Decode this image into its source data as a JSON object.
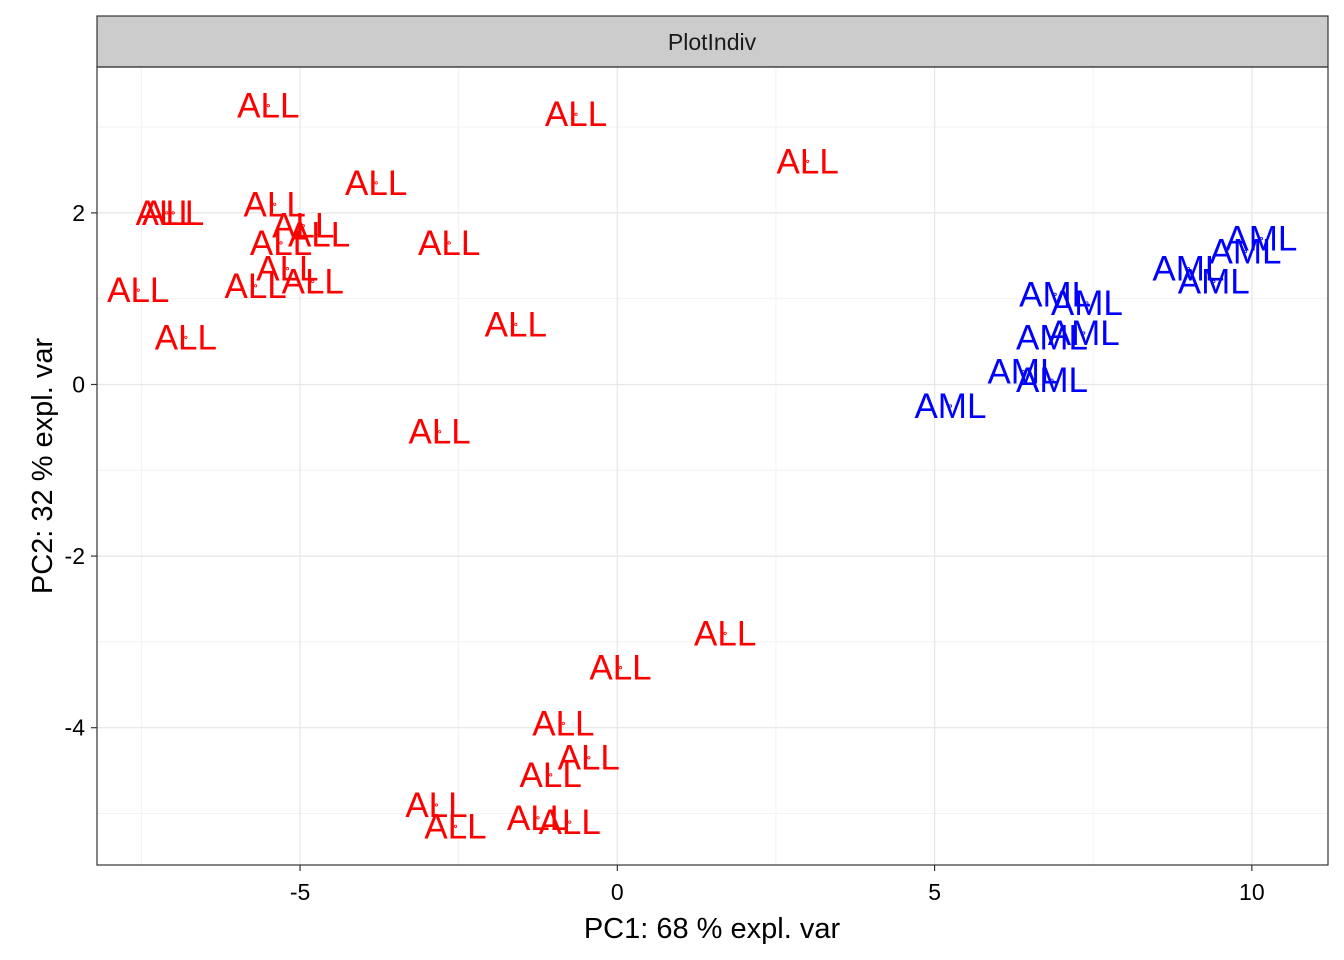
{
  "chart_data": {
    "type": "scatter",
    "title": "",
    "panel_title": "PlotIndiv",
    "xlabel": "PC1: 68 % expl. var",
    "ylabel": "PC2: 32 % expl. var",
    "xlim": [
      -8.2,
      11.2
    ],
    "ylim": [
      -5.6,
      3.7
    ],
    "x_ticks": [
      -5,
      0,
      5,
      10
    ],
    "x_tick_labels": [
      "-5",
      "0",
      "5",
      "10"
    ],
    "y_ticks": [
      -4,
      -2,
      0,
      2
    ],
    "y_tick_labels": [
      "-4",
      "-2",
      "0",
      "2"
    ],
    "grid": true,
    "legend": "none",
    "series": [
      {
        "name": "ALL",
        "color": "#ff0000",
        "points": [
          {
            "x": -5.5,
            "y": 3.25,
            "label": "ALL"
          },
          {
            "x": -0.65,
            "y": 3.15,
            "label": "ALL"
          },
          {
            "x": 3.0,
            "y": 2.6,
            "label": "ALL"
          },
          {
            "x": -7.1,
            "y": 2.0,
            "label": "ALL"
          },
          {
            "x": -7.0,
            "y": 2.0,
            "label": "ALL"
          },
          {
            "x": -5.4,
            "y": 2.1,
            "label": "ALL"
          },
          {
            "x": -3.8,
            "y": 2.35,
            "label": "ALL"
          },
          {
            "x": -4.95,
            "y": 1.85,
            "label": "ALL"
          },
          {
            "x": -4.7,
            "y": 1.75,
            "label": "ALL"
          },
          {
            "x": -5.3,
            "y": 1.65,
            "label": "ALL"
          },
          {
            "x": -2.65,
            "y": 1.65,
            "label": "ALL"
          },
          {
            "x": -5.2,
            "y": 1.35,
            "label": "ALL"
          },
          {
            "x": -4.8,
            "y": 1.2,
            "label": "ALL"
          },
          {
            "x": -7.55,
            "y": 1.1,
            "label": "ALL"
          },
          {
            "x": -5.7,
            "y": 1.15,
            "label": "ALL"
          },
          {
            "x": -1.6,
            "y": 0.7,
            "label": "ALL"
          },
          {
            "x": -6.8,
            "y": 0.55,
            "label": "ALL"
          },
          {
            "x": -2.8,
            "y": -0.55,
            "label": "ALL"
          },
          {
            "x": 1.7,
            "y": -2.9,
            "label": "ALL"
          },
          {
            "x": 0.05,
            "y": -3.3,
            "label": "ALL"
          },
          {
            "x": -0.85,
            "y": -3.95,
            "label": "ALL"
          },
          {
            "x": -0.45,
            "y": -4.35,
            "label": "ALL"
          },
          {
            "x": -1.05,
            "y": -4.55,
            "label": "ALL"
          },
          {
            "x": -2.85,
            "y": -4.9,
            "label": "ALL"
          },
          {
            "x": -2.55,
            "y": -5.15,
            "label": "ALL"
          },
          {
            "x": -1.25,
            "y": -5.05,
            "label": "ALL"
          },
          {
            "x": -0.75,
            "y": -5.1,
            "label": "ALL"
          }
        ]
      },
      {
        "name": "AML",
        "color": "#0000ff",
        "points": [
          {
            "x": 10.15,
            "y": 1.7,
            "label": "AML"
          },
          {
            "x": 9.9,
            "y": 1.55,
            "label": "AML"
          },
          {
            "x": 9.0,
            "y": 1.35,
            "label": "AML"
          },
          {
            "x": 9.4,
            "y": 1.2,
            "label": "AML"
          },
          {
            "x": 6.9,
            "y": 1.05,
            "label": "AML"
          },
          {
            "x": 7.4,
            "y": 0.95,
            "label": "AML"
          },
          {
            "x": 6.85,
            "y": 0.55,
            "label": "AML"
          },
          {
            "x": 7.35,
            "y": 0.6,
            "label": "AML"
          },
          {
            "x": 6.4,
            "y": 0.15,
            "label": "AML"
          },
          {
            "x": 6.85,
            "y": 0.05,
            "label": "AML"
          },
          {
            "x": 5.25,
            "y": -0.25,
            "label": "AML"
          }
        ]
      }
    ]
  }
}
